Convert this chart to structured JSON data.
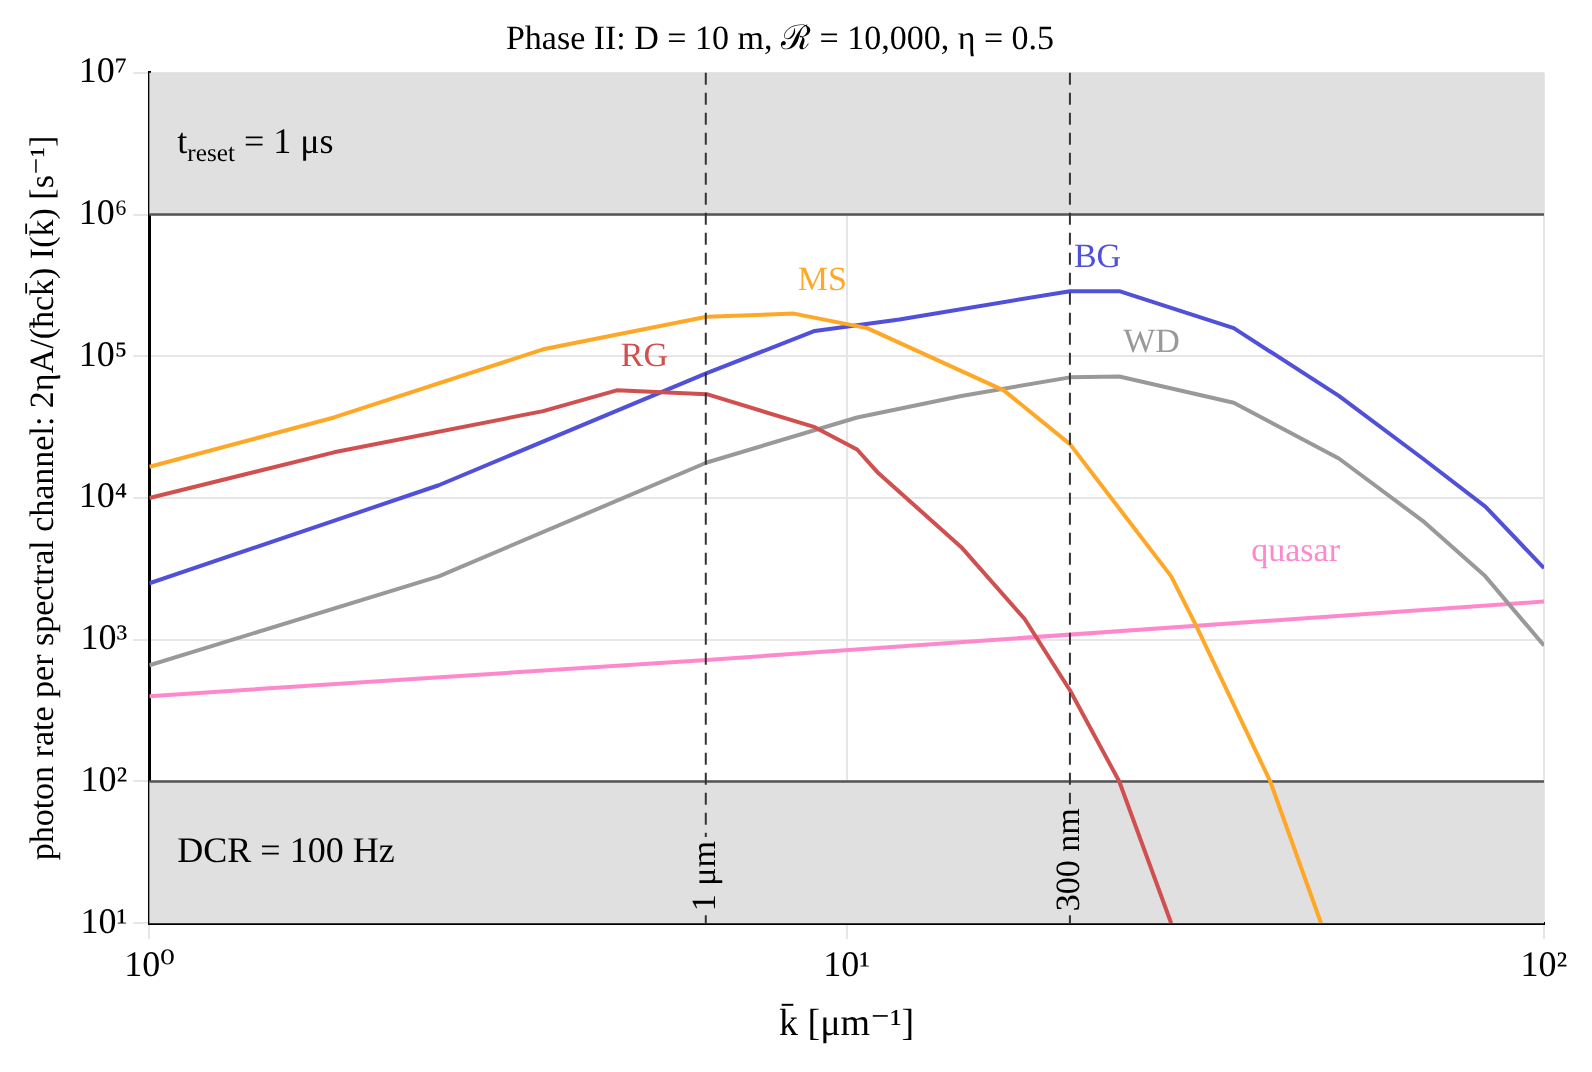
{
  "chart_data": {
    "type": "line",
    "title": "Phase II: D = 10 m, ℛ = 10,000, η = 0.5",
    "xlabel": "k̄ [μm⁻¹]",
    "ylabel": "photon rate per spectral channel: 2ηA/(ħck̄) I(k̄) [s⁻¹]",
    "log": "xy",
    "grid": true,
    "legend": false,
    "line_style": "solid",
    "marker": "none",
    "xlim": [
      1,
      100
    ],
    "xticks": [
      {
        "value": 1,
        "label": "10⁰"
      },
      {
        "value": 10,
        "label": "10¹"
      },
      {
        "value": 100,
        "label": "10²"
      }
    ],
    "ylim": [
      10,
      10000000
    ],
    "yticks": [
      {
        "value": 10,
        "label": "10¹"
      },
      {
        "value": 100,
        "label": "10²"
      },
      {
        "value": 1000,
        "label": "10³"
      },
      {
        "value": 10000,
        "label": "10⁴"
      },
      {
        "value": 100000,
        "label": "10⁵"
      },
      {
        "value": 1000000,
        "label": "10⁶"
      },
      {
        "value": 10000000,
        "label": "10⁷"
      }
    ],
    "series": [
      {
        "name": "MS",
        "color": "#ffa726",
        "x": [
          1,
          1.84,
          3.67,
          6.3,
          8.4,
          10.7,
          16.8,
          20.9,
          29.2,
          31.6,
          40.5,
          47.9
        ],
        "values": [
          16600,
          37000,
          112000,
          190000,
          200000,
          158000,
          57500,
          24000,
          2800,
          1300,
          100,
          10
        ]
      },
      {
        "name": "RG",
        "color": "#d05050",
        "x": [
          1,
          1.84,
          3.67,
          4.68,
          6.3,
          9.0,
          10.35,
          11.1,
          14.6,
          18.0,
          20.9,
          24.6,
          29.2
        ],
        "values": [
          10000,
          21000,
          41000,
          57500,
          54000,
          31600,
          22000,
          15000,
          4500,
          1400,
          440,
          100,
          10
        ]
      },
      {
        "name": "BG",
        "color": "#5050d8",
        "x": [
          1,
          2.6,
          6.3,
          9.0,
          11.9,
          20.9,
          24.6,
          35.9,
          50.8,
          67,
          82.4,
          100
        ],
        "values": [
          2500,
          12300,
          76000,
          151000,
          182000,
          288000,
          288000,
          158000,
          52500,
          19000,
          8700,
          3200
        ]
      },
      {
        "name": "WD",
        "color": "#999999",
        "x": [
          1,
          2.6,
          6.3,
          10.35,
          14.6,
          20.9,
          24.6,
          35.9,
          50.8,
          67,
          82.4,
          100
        ],
        "values": [
          660,
          2800,
          17800,
          37000,
          52500,
          71000,
          72000,
          47000,
          19000,
          6900,
          2800,
          910
        ]
      },
      {
        "name": "quasar",
        "color": "#ff88cc",
        "x": [
          1,
          6.3,
          100
        ],
        "values": [
          400,
          720,
          1860
        ]
      }
    ],
    "bands": [
      {
        "axis": "y",
        "from": 1000000,
        "to": 10000000,
        "label": "t$_{reset}$ = 1 μs",
        "color": "#e0e0e0"
      },
      {
        "axis": "y",
        "from": 10,
        "to": 100,
        "label": "DCR = 100 Hz",
        "color": "#e0e0e0"
      }
    ],
    "ref_lines": [
      {
        "axis": "x",
        "value": 6.28,
        "label": "1 μm",
        "line_style": "dashed"
      },
      {
        "axis": "x",
        "value": 20.9,
        "label": "300 nm",
        "line_style": "dashed"
      }
    ]
  }
}
